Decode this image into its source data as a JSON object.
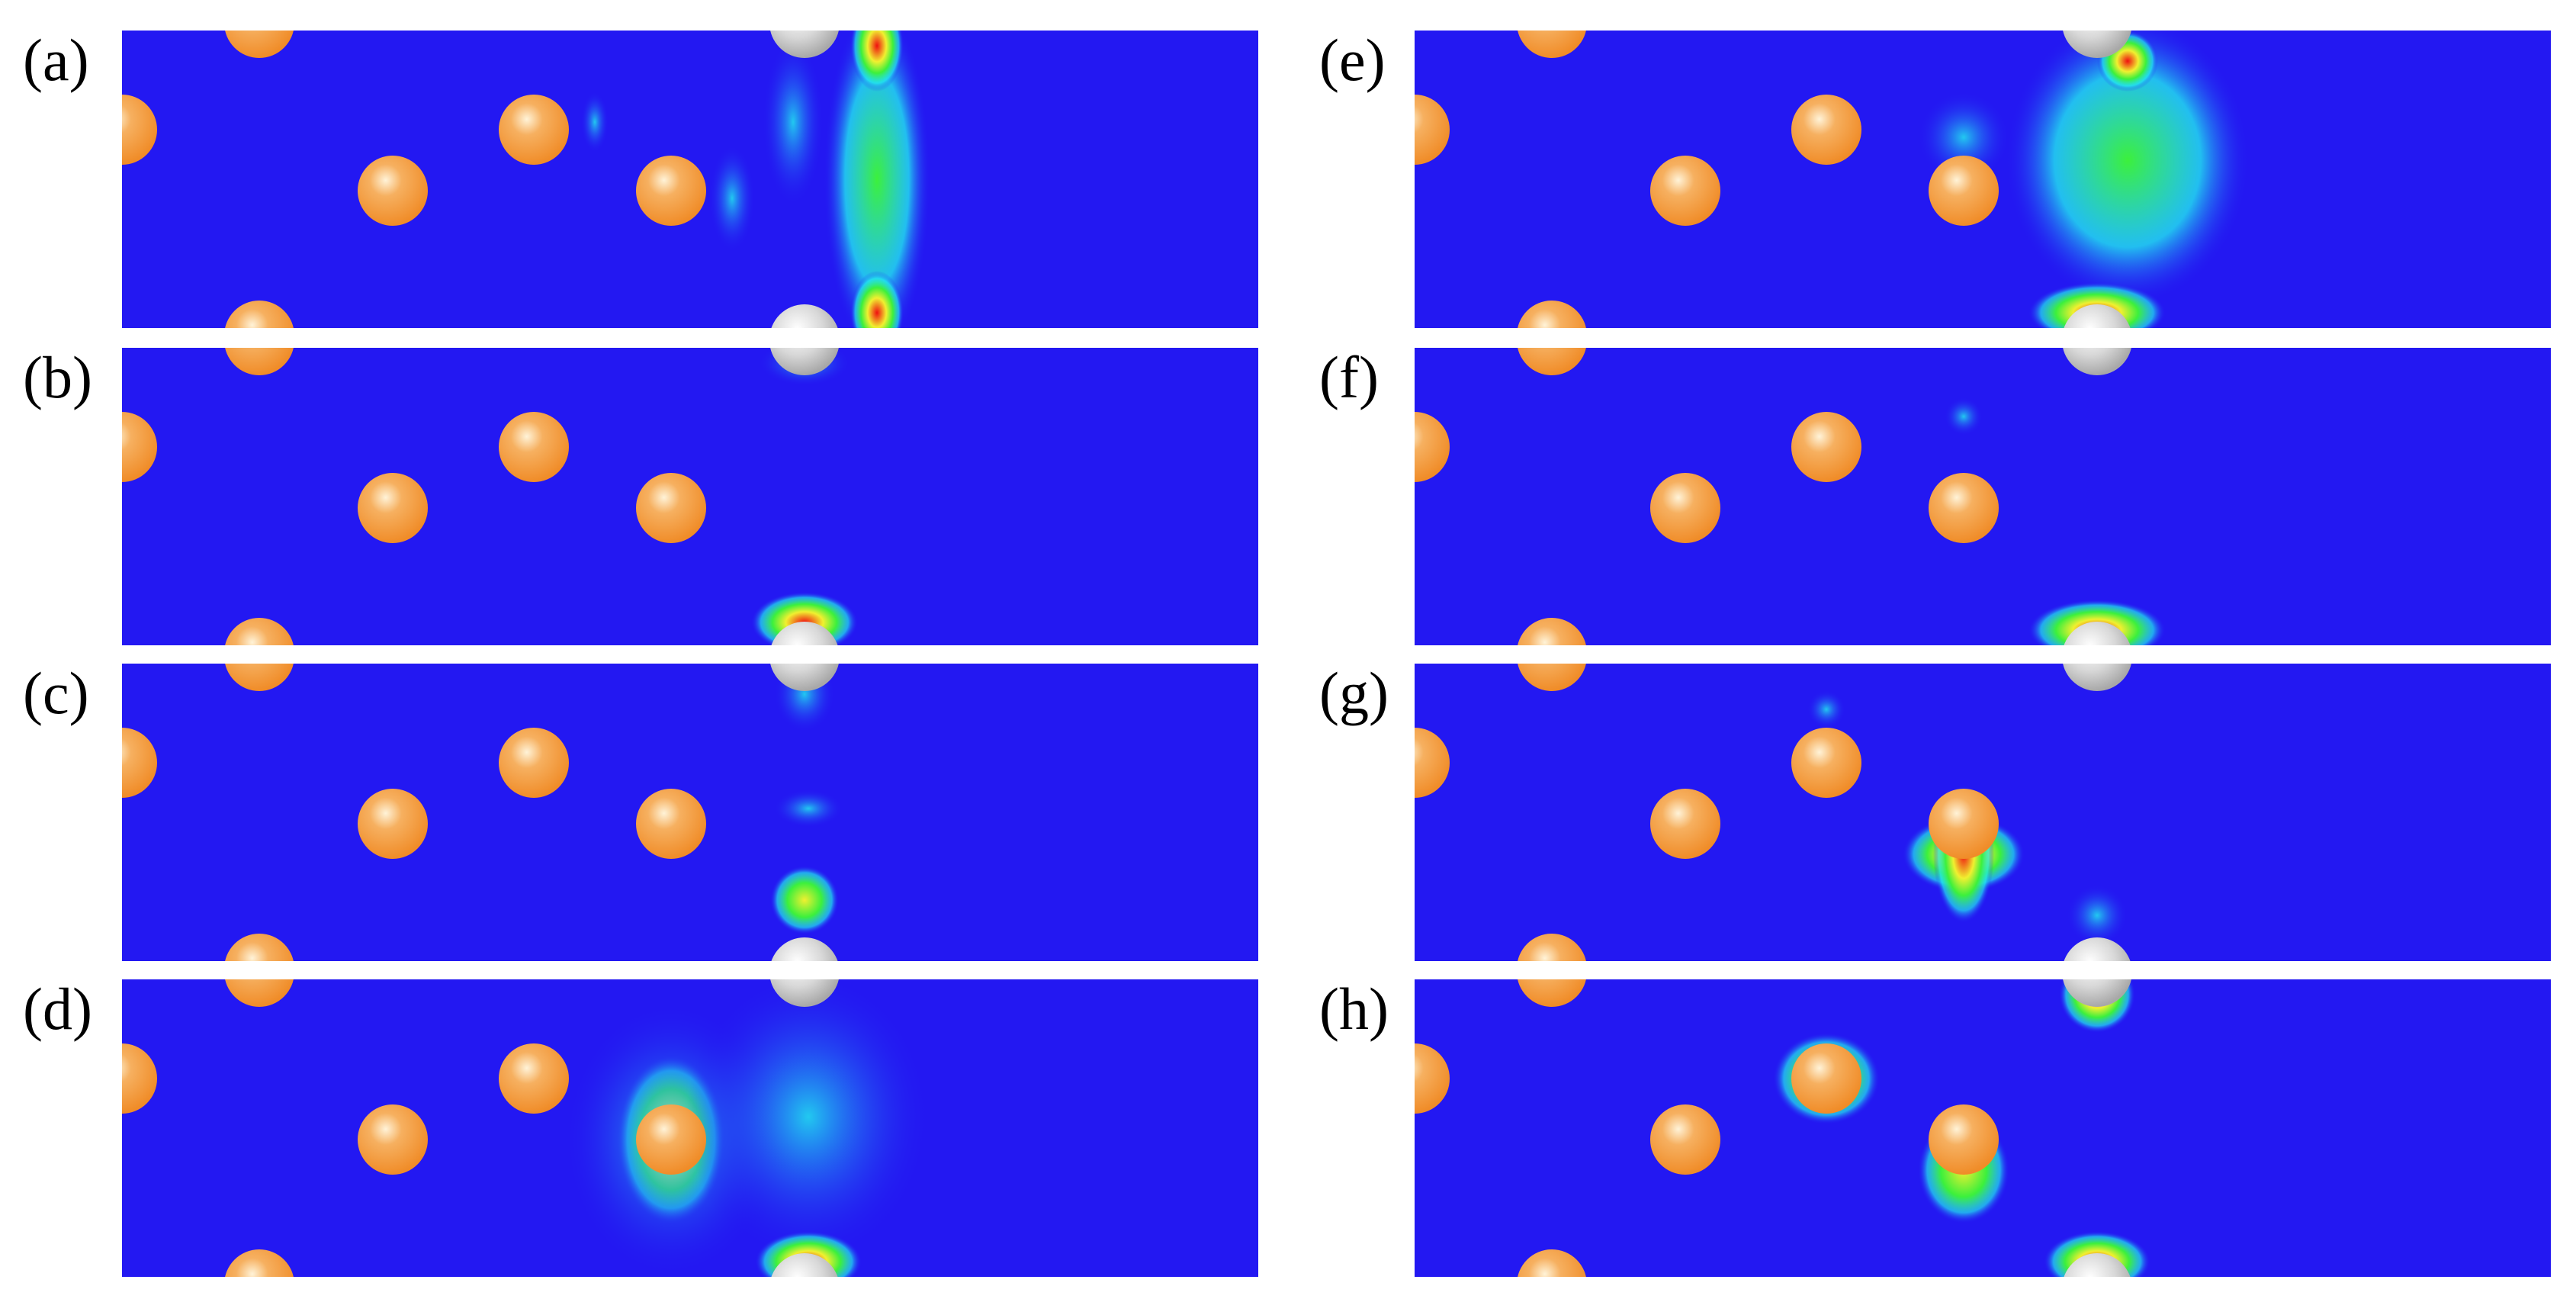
{
  "figure": {
    "background_color": "#2318f2",
    "labels": [
      "(a)",
      "(b)",
      "(c)",
      "(d)",
      "(e)",
      "(f)",
      "(g)",
      "(h)"
    ]
  },
  "colors": {
    "field_low": "#2318f2",
    "field_cyan": "#22e8f0",
    "field_green": "#3cf03c",
    "field_yellow": "#f0f030",
    "field_red": "#f01010",
    "atom_orange": "#f08c28",
    "atom_gray": "#c8c8c8",
    "separator": "#ffffff"
  },
  "atoms": {
    "orange_icon": "orange-sphere-atom-icon",
    "gray_icon": "gray-sphere-atom-icon"
  }
}
